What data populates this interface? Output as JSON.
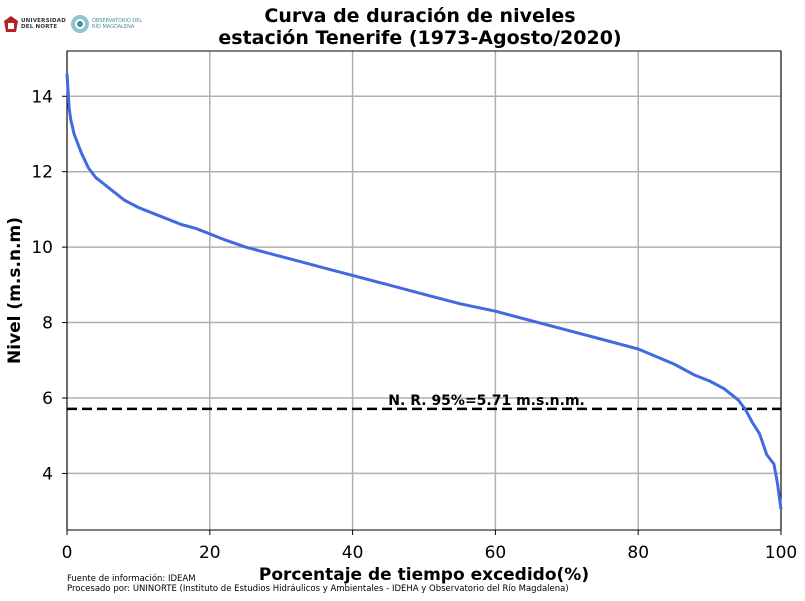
{
  "logos": {
    "uninorte_line1": "UNIVERSIDAD",
    "uninorte_line2": "DEL NORTE",
    "observatorio_line1": "OBSERVATORIO DEL",
    "observatorio_line2": "RÍO MAGDALENA"
  },
  "footer": {
    "source": "Fuente de información: IDEAM",
    "processed": "Procesado por: UNINORTE (Instituto de Estudios Hidráulicos y Ambientales - IDEHA y Observatorio del Río Magdalena)"
  },
  "colors": {
    "series": "#4169e1",
    "reference": "#000000",
    "grid": "#b0b0b0"
  },
  "chart_data": {
    "type": "line",
    "title_line1": "Curva de duración de niveles",
    "title_line2": "estación Tenerife (1973-Agosto/2020)",
    "xlabel": "Porcentaje de tiempo excedido(%)",
    "ylabel": "Nivel (m.s.n.m)",
    "xlim": [
      0,
      100
    ],
    "ylim": [
      2.5,
      15.2
    ],
    "xticks": [
      "0",
      "20",
      "40",
      "60",
      "80",
      "100"
    ],
    "yticks": [
      "4",
      "6",
      "8",
      "10",
      "12",
      "14"
    ],
    "grid": true,
    "series": [
      {
        "x": [
          0,
          0.3,
          0.5,
          1,
          2,
          3,
          4,
          5,
          6,
          7,
          8,
          10,
          12,
          14,
          16,
          18,
          20,
          22,
          25,
          28,
          30,
          33,
          36,
          40,
          45,
          50,
          55,
          60,
          65,
          70,
          75,
          80,
          85,
          88,
          90,
          92,
          93,
          94,
          95,
          96,
          97,
          98,
          99,
          99.5,
          100
        ],
        "y": [
          14.6,
          13.7,
          13.4,
          13.0,
          12.5,
          12.1,
          11.85,
          11.7,
          11.55,
          11.4,
          11.25,
          11.05,
          10.9,
          10.75,
          10.6,
          10.5,
          10.35,
          10.2,
          10.0,
          9.85,
          9.75,
          9.6,
          9.45,
          9.25,
          9.0,
          8.75,
          8.5,
          8.3,
          8.05,
          7.8,
          7.55,
          7.3,
          6.9,
          6.6,
          6.45,
          6.25,
          6.1,
          5.95,
          5.7,
          5.35,
          5.05,
          4.5,
          4.25,
          3.75,
          3.05
        ]
      }
    ],
    "reference_line": {
      "y": 5.71,
      "label": "N. R. 95%=5.71 m.s.n.m."
    }
  }
}
